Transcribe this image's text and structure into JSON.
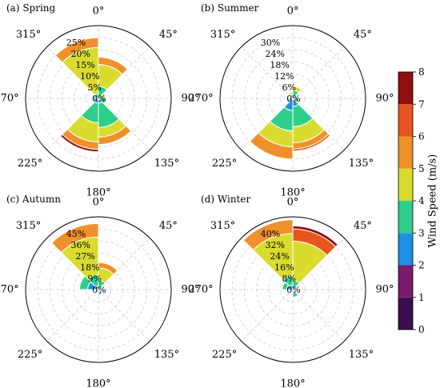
{
  "chart_data": {
    "type": "wind-rose",
    "colorbar": {
      "label": "Wind Speed (m/s)",
      "ticks": [
        0,
        1,
        2,
        3,
        4,
        5,
        6,
        7,
        8
      ],
      "bins": [
        {
          "range": [
            0,
            1
          ],
          "color": "#3b0f4f"
        },
        {
          "range": [
            1,
            2
          ],
          "color": "#7a1a6e"
        },
        {
          "range": [
            2,
            3
          ],
          "color": "#1f8fe5"
        },
        {
          "range": [
            3,
            4
          ],
          "color": "#2ecf8a"
        },
        {
          "range": [
            4,
            5
          ],
          "color": "#d9dc2e"
        },
        {
          "range": [
            5,
            6
          ],
          "color": "#f0902a"
        },
        {
          "range": [
            6,
            7
          ],
          "color": "#e8541d"
        },
        {
          "range": [
            7,
            8
          ],
          "color": "#8f0f0f"
        }
      ]
    },
    "direction_labels": [
      "0°",
      "45°",
      "90°",
      "135°",
      "180°",
      "225°",
      "270°",
      "315°"
    ],
    "panels": [
      {
        "title": "(a) Spring",
        "rmax": 30,
        "radial_ticks": [
          0,
          5,
          10,
          15,
          20,
          25
        ],
        "radial_tick_labels": [
          "0%",
          "5%",
          "10%",
          "15%",
          "20%",
          "25%"
        ],
        "sectors": [
          {
            "direction": 337.5,
            "segments": [
              [
                3,
                2
              ],
              [
                4,
                19
              ],
              [
                5,
                4
              ]
            ]
          },
          {
            "direction": 22.5,
            "segments": [
              [
                3,
                5
              ],
              [
                4,
                9
              ],
              [
                5,
                3
              ]
            ]
          },
          {
            "direction": 67.5,
            "segments": [
              [
                3,
                2
              ],
              [
                4,
                1
              ]
            ]
          },
          {
            "direction": 112.5,
            "segments": [
              [
                3,
                3
              ]
            ]
          },
          {
            "direction": 157.5,
            "segments": [
              [
                2,
                2
              ],
              [
                3,
                10
              ],
              [
                4,
                4
              ],
              [
                5,
                3
              ]
            ]
          },
          {
            "direction": 202.5,
            "segments": [
              [
                2,
                2
              ],
              [
                3,
                8
              ],
              [
                4,
                8
              ],
              [
                5,
                3
              ],
              [
                7,
                1
              ]
            ]
          },
          {
            "direction": 247.5,
            "segments": [
              [
                2,
                2
              ]
            ]
          },
          {
            "direction": 292.5,
            "segments": [
              [
                2,
                1
              ],
              [
                3,
                1
              ]
            ]
          }
        ]
      },
      {
        "title": "(b) Summer",
        "rmax": 36,
        "radial_ticks": [
          0,
          6,
          12,
          18,
          24,
          30
        ],
        "radial_tick_labels": [
          "0%",
          "6%",
          "12%",
          "18%",
          "24%",
          "30%"
        ],
        "sectors": [
          {
            "direction": 337.5,
            "segments": [
              [
                3,
                2
              ],
              [
                4,
                1
              ]
            ]
          },
          {
            "direction": 22.5,
            "segments": [
              [
                2,
                1
              ],
              [
                3,
                3
              ],
              [
                4,
                2
              ]
            ]
          },
          {
            "direction": 67.5,
            "segments": [
              [
                3,
                2
              ]
            ]
          },
          {
            "direction": 112.5,
            "segments": [
              [
                2,
                1
              ],
              [
                3,
                2
              ]
            ]
          },
          {
            "direction": 157.5,
            "segments": [
              [
                2,
                4
              ],
              [
                3,
                10
              ],
              [
                4,
                8
              ],
              [
                5,
                3
              ],
              [
                6,
                1
              ]
            ]
          },
          {
            "direction": 202.5,
            "segments": [
              [
                2,
                6
              ],
              [
                3,
                10
              ],
              [
                4,
                8
              ],
              [
                5,
                6
              ]
            ]
          },
          {
            "direction": 247.5,
            "segments": [
              [
                2,
                2
              ],
              [
                3,
                1
              ]
            ]
          },
          {
            "direction": 292.5,
            "segments": [
              [
                3,
                1
              ]
            ]
          }
        ]
      },
      {
        "title": "(c) Autumn",
        "rmax": 54,
        "radial_ticks": [
          0,
          9,
          18,
          27,
          36,
          45
        ],
        "radial_tick_labels": [
          "0%",
          "9%",
          "18%",
          "27%",
          "36%",
          "45%"
        ],
        "sectors": [
          {
            "direction": 337.5,
            "segments": [
              [
                2,
                3
              ],
              [
                3,
                8
              ],
              [
                4,
                28
              ],
              [
                5,
                10
              ]
            ]
          },
          {
            "direction": 22.5,
            "segments": [
              [
                3,
                7
              ],
              [
                4,
                9
              ],
              [
                5,
                4
              ]
            ]
          },
          {
            "direction": 67.5,
            "segments": [
              [
                3,
                2
              ]
            ]
          },
          {
            "direction": 157.5,
            "segments": [
              [
                2,
                2
              ],
              [
                3,
                2
              ]
            ]
          },
          {
            "direction": 202.5,
            "segments": [
              [
                2,
                2
              ]
            ]
          },
          {
            "direction": 292.5,
            "segments": [
              [
                2,
                8
              ],
              [
                3,
                6
              ]
            ]
          }
        ]
      },
      {
        "title": "(d) Winter",
        "rmax": 48,
        "radial_ticks": [
          0,
          8,
          16,
          24,
          32,
          40
        ],
        "radial_tick_labels": [
          "0%",
          "8%",
          "16%",
          "24%",
          "32%",
          "40%"
        ],
        "sectors": [
          {
            "direction": 337.5,
            "segments": [
              [
                2,
                3
              ],
              [
                3,
                6
              ],
              [
                4,
                28
              ],
              [
                5,
                9
              ]
            ]
          },
          {
            "direction": 22.5,
            "segments": [
              [
                3,
                6
              ],
              [
                4,
                26
              ],
              [
                6,
                8
              ],
              [
                7,
                2
              ]
            ]
          },
          {
            "direction": 67.5,
            "segments": [
              [
                3,
                2
              ]
            ]
          },
          {
            "direction": 157.5,
            "segments": [
              [
                3,
                5
              ]
            ]
          },
          {
            "direction": 292.5,
            "segments": [
              [
                2,
                4
              ],
              [
                3,
                3
              ]
            ]
          }
        ]
      }
    ]
  }
}
